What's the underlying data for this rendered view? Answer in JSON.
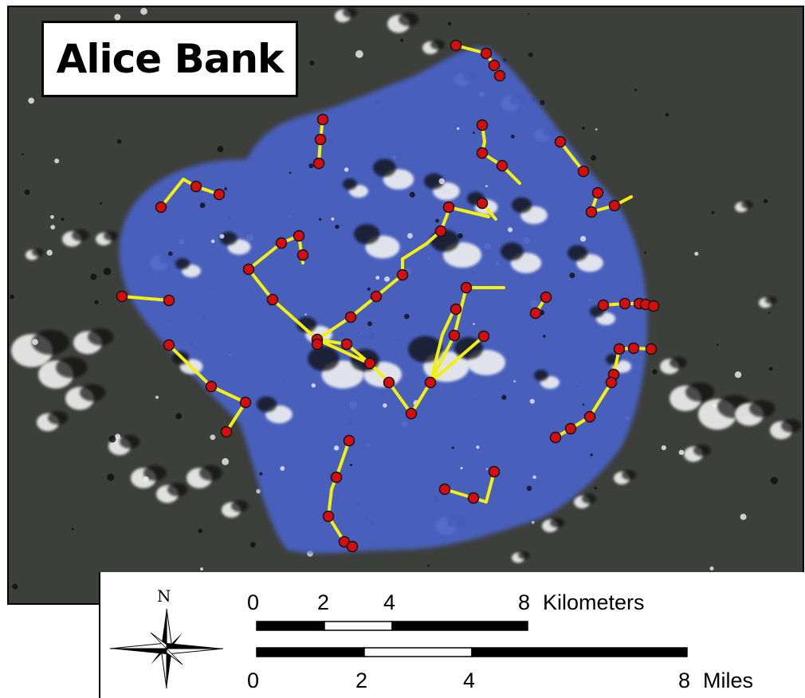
{
  "map": {
    "title": "Alice Bank",
    "colors": {
      "water": "#3d3f3b",
      "bank": "#4a63c8",
      "transect": "#f3f00f",
      "station": "#d60d0d",
      "station_outline": "#111111",
      "cloud": "#f2f2f2",
      "shadow": "#0e0e10"
    }
  },
  "legend": {
    "north_label": "N",
    "north_icon": "compass-rose-icon",
    "km": {
      "ticks": [
        {
          "label": "0",
          "value": 0
        },
        {
          "label": "2",
          "value": 2
        },
        {
          "label": "4",
          "value": 4
        },
        {
          "label": "8",
          "value": 8
        }
      ],
      "unit": "Kilometers",
      "segments": [
        {
          "from": 0,
          "to": 2,
          "fill": "black"
        },
        {
          "from": 2,
          "to": 4,
          "fill": "white"
        },
        {
          "from": 4,
          "to": 8,
          "fill": "black"
        }
      ]
    },
    "mi": {
      "ticks": [
        {
          "label": "0",
          "value": 0
        },
        {
          "label": "2",
          "value": 2
        },
        {
          "label": "4",
          "value": 4
        },
        {
          "label": "8",
          "value": 8
        }
      ],
      "unit": "Miles",
      "segments": [
        {
          "from": 0,
          "to": 2,
          "fill": "black"
        },
        {
          "from": 2,
          "to": 4,
          "fill": "white"
        },
        {
          "from": 4,
          "to": 8,
          "fill": "black"
        }
      ]
    }
  }
}
